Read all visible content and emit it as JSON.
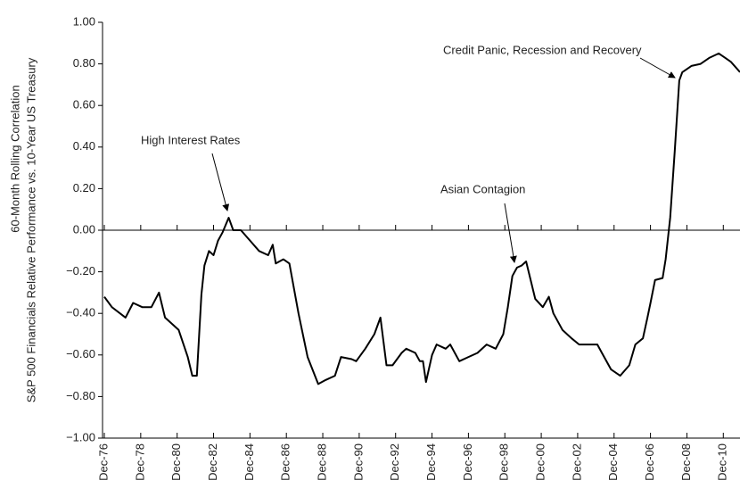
{
  "chart_data": {
    "type": "line",
    "y_label": [
      "60-Month Rolling Correlation",
      "S&P 500 Financials Relative Performance vs. 10-Year US Treasury"
    ],
    "annotations": [
      "High Interest Rates",
      "Asian Contagion",
      "Credit Panic, Recession and Recovery"
    ],
    "x": [
      "1976-12",
      "1977-05",
      "1978-02",
      "1978-07",
      "1979-01",
      "1979-07",
      "1979-12",
      "1980-04",
      "1981-01",
      "1981-07",
      "1981-10",
      "1982-01",
      "1982-04",
      "1982-06",
      "1982-09",
      "1982-12",
      "1983-03",
      "1983-06",
      "1983-10",
      "1984-01",
      "1984-06",
      "1984-12",
      "1985-06",
      "1985-12",
      "1986-03",
      "1986-05",
      "1986-10",
      "1987-02",
      "1987-08",
      "1988-02",
      "1988-09",
      "1989-02",
      "1989-08",
      "1989-12",
      "1990-07",
      "1990-10",
      "1991-04",
      "1991-10",
      "1992-02",
      "1992-06",
      "1992-10",
      "1993-04",
      "1993-07",
      "1994-01",
      "1994-04",
      "1994-06",
      "1994-08",
      "1994-12",
      "1995-03",
      "1995-09",
      "1995-12",
      "1996-06",
      "1996-12",
      "1997-06",
      "1997-12",
      "1998-06",
      "1998-11",
      "1999-02",
      "1999-05",
      "1999-08",
      "1999-11",
      "2000-02",
      "2000-05",
      "2000-08",
      "2001-01",
      "2001-05",
      "2001-08",
      "2002-02",
      "2002-08",
      "2003-01",
      "2003-07",
      "2004-01",
      "2004-04",
      "2004-10",
      "2005-04",
      "2005-10",
      "2006-02",
      "2006-07",
      "2006-10",
      "2006-12",
      "2007-03",
      "2007-08",
      "2007-10",
      "2008-01",
      "2008-04",
      "2008-07",
      "2008-09",
      "2009-03",
      "2009-09",
      "2010-03",
      "2010-09",
      "2011-01",
      "2011-05",
      "2011-11"
    ],
    "series": [
      {
        "color": "#000000",
        "values": [
          -0.32,
          -0.37,
          -0.42,
          -0.35,
          -0.37,
          -0.37,
          -0.3,
          -0.42,
          -0.48,
          -0.61,
          -0.7,
          -0.7,
          -0.31,
          -0.17,
          -0.1,
          -0.12,
          -0.05,
          -0.01,
          0.06,
          0.0,
          0.0,
          -0.05,
          -0.1,
          -0.12,
          -0.07,
          -0.16,
          -0.14,
          -0.16,
          -0.4,
          -0.61,
          -0.74,
          -0.72,
          -0.7,
          -0.61,
          -0.62,
          -0.63,
          -0.57,
          -0.5,
          -0.42,
          -0.65,
          -0.65,
          -0.59,
          -0.57,
          -0.59,
          -0.63,
          -0.63,
          -0.73,
          -0.6,
          -0.55,
          -0.57,
          -0.55,
          -0.63,
          -0.61,
          -0.59,
          -0.55,
          -0.57,
          -0.5,
          -0.37,
          -0.22,
          -0.18,
          -0.17,
          -0.15,
          -0.24,
          -0.33,
          -0.37,
          -0.32,
          -0.4,
          -0.48,
          -0.52,
          -0.55,
          -0.55,
          -0.55,
          -0.59,
          -0.67,
          -0.7,
          -0.65,
          -0.55,
          -0.52,
          -0.42,
          -0.35,
          -0.24,
          -0.23,
          -0.14,
          0.06,
          0.38,
          0.72,
          0.76,
          0.79,
          0.8,
          0.83,
          0.85,
          0.83,
          0.81,
          0.76
        ]
      }
    ],
    "xlim": [
      "1976-12",
      "2011-11"
    ],
    "xticks": [
      {
        "value": "1976-12",
        "label": "Dec-76"
      },
      {
        "value": "1978-12",
        "label": "Dec-78"
      },
      {
        "value": "1980-12",
        "label": "Dec-80"
      },
      {
        "value": "1982-12",
        "label": "Dec-82"
      },
      {
        "value": "1984-12",
        "label": "Dec-84"
      },
      {
        "value": "1986-12",
        "label": "Dec-86"
      },
      {
        "value": "1988-12",
        "label": "Dec-88"
      },
      {
        "value": "1990-12",
        "label": "Dec-90"
      },
      {
        "value": "1992-12",
        "label": "Dec-92"
      },
      {
        "value": "1994-12",
        "label": "Dec-94"
      },
      {
        "value": "1996-12",
        "label": "Dec-96"
      },
      {
        "value": "1998-12",
        "label": "Dec-98"
      },
      {
        "value": "2000-12",
        "label": "Dec-00"
      },
      {
        "value": "2002-12",
        "label": "Dec-02"
      },
      {
        "value": "2004-12",
        "label": "Dec-04"
      },
      {
        "value": "2006-12",
        "label": "Dec-06"
      },
      {
        "value": "2008-12",
        "label": "Dec-08"
      },
      {
        "value": "2010-12",
        "label": "Dec-10"
      }
    ],
    "ylim": [
      -1,
      1
    ],
    "yticks": [
      {
        "value": 1,
        "label": "1.00"
      },
      {
        "value": 0.8,
        "label": "0.80"
      },
      {
        "value": 0.6,
        "label": "0.60"
      },
      {
        "value": 0.4,
        "label": "0.40"
      },
      {
        "value": 0.2,
        "label": "0.20"
      },
      {
        "value": 0,
        "label": "0.00"
      },
      {
        "value": -0.2,
        "label": "−0.20"
      },
      {
        "value": -0.4,
        "label": "−0.40"
      },
      {
        "value": -0.6,
        "label": "−0.60"
      },
      {
        "value": -0.8,
        "label": "−0.80"
      },
      {
        "value": -1,
        "label": "−1.00"
      }
    ]
  }
}
